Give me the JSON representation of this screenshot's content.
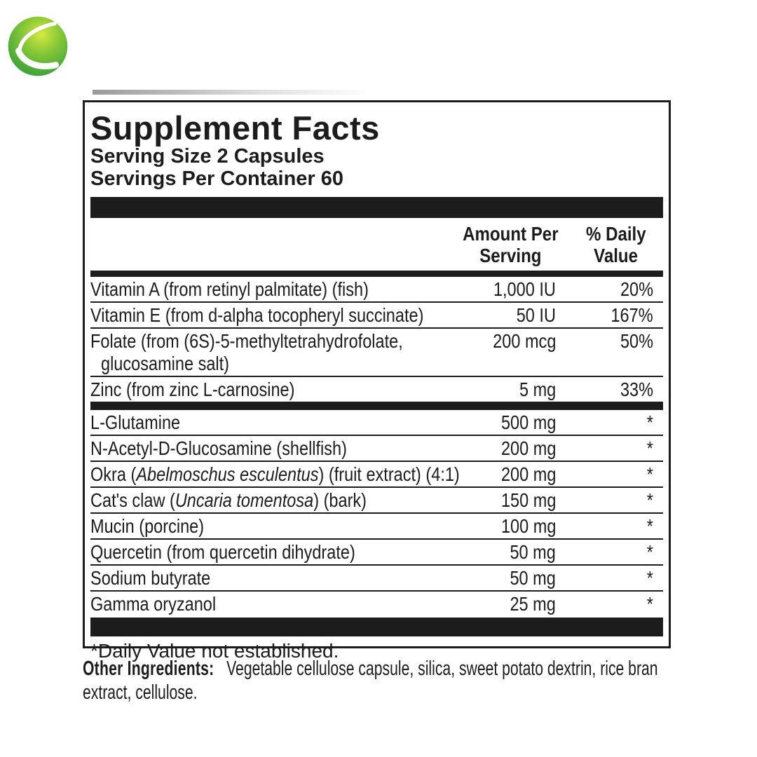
{
  "logo": {
    "icon": "green-sphere-swoosh-logo",
    "colors": {
      "highlight": "#cfe83e",
      "mid": "#7cc235",
      "edge": "#2d9c3c",
      "swoosh": "#ffffff"
    }
  },
  "panel": {
    "title": "Supplement Facts",
    "serving_size": "Serving Size 2 Capsules",
    "servings_per_container": "Servings Per Container 60",
    "columns": {
      "amount_line1": "Amount Per",
      "amount_line2": "Serving",
      "daily_line1": "% Daily",
      "daily_line2": "Value"
    },
    "footnote": "*Daily Value not established."
  },
  "table": {
    "rows": [
      {
        "name_parts": [
          {
            "text": "Vitamin A (from retinyl palmitate) (fish)"
          }
        ],
        "amount": "1,000 IU",
        "dv": "20%"
      },
      {
        "name_parts": [
          {
            "text": "Vitamin E (from d-alpha tocopheryl succinate)"
          }
        ],
        "amount": "50 IU",
        "dv": "167%"
      },
      {
        "name_parts": [
          {
            "text": "Folate (from (6S)-5-methyltetrahydrofolate,"
          }
        ],
        "name_line2": "glucosamine salt)",
        "amount": "200 mcg",
        "dv": "50%"
      },
      {
        "name_parts": [
          {
            "text": "Zinc (from zinc L-carnosine)"
          }
        ],
        "amount": "5 mg",
        "dv": "33%",
        "divider_after": true
      },
      {
        "name_parts": [
          {
            "text": "L-Glutamine"
          }
        ],
        "amount": "500 mg",
        "dv": "*"
      },
      {
        "name_parts": [
          {
            "text": "N-Acetyl-D-Glucosamine (shellfish)"
          }
        ],
        "amount": "200 mg",
        "dv": "*"
      },
      {
        "name_parts": [
          {
            "text": "Okra ("
          },
          {
            "text": "Abelmoschus esculentus",
            "italic": true
          },
          {
            "text": ") (fruit extract) (4:1)"
          }
        ],
        "amount": "200 mg",
        "dv": "*"
      },
      {
        "name_parts": [
          {
            "text": "Cat's claw ("
          },
          {
            "text": "Uncaria tomentosa",
            "italic": true
          },
          {
            "text": ") (bark)"
          }
        ],
        "amount": "150 mg",
        "dv": "*"
      },
      {
        "name_parts": [
          {
            "text": "Mucin (porcine)"
          }
        ],
        "amount": "100 mg",
        "dv": "*"
      },
      {
        "name_parts": [
          {
            "text": "Quercetin (from quercetin dihydrate)"
          }
        ],
        "amount": "50 mg",
        "dv": "*"
      },
      {
        "name_parts": [
          {
            "text": "Sodium butyrate"
          }
        ],
        "amount": "50 mg",
        "dv": "*"
      },
      {
        "name_parts": [
          {
            "text": "Gamma oryzanol"
          }
        ],
        "amount": "25 mg",
        "dv": "*"
      }
    ]
  },
  "other_ingredients": {
    "label": "Other Ingredients:",
    "text_line1": "Vegetable cellulose capsule, silica, sweet potato dextrin, rice bran",
    "text_line2": "extract, cellulose."
  },
  "colors": {
    "ink": "#1c1c1c",
    "background": "#ffffff"
  }
}
